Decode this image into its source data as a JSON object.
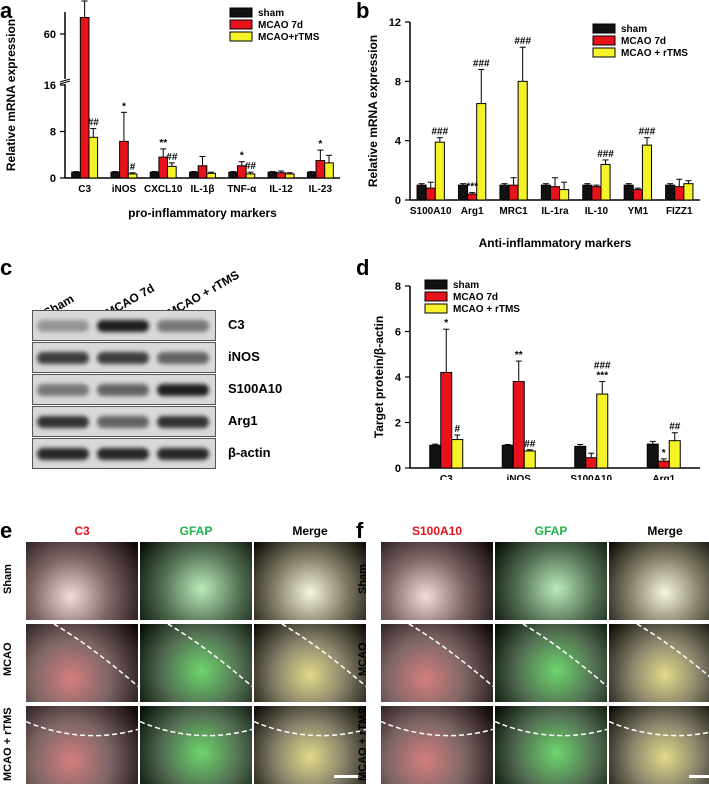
{
  "panel_labels": {
    "a": "a",
    "b": "b",
    "c": "c",
    "d": "d",
    "e": "e",
    "f": "f"
  },
  "colors": {
    "sham": "#111111",
    "mcao": "#e8121b",
    "rtms": "#f5f227"
  },
  "chart_data": [
    {
      "id": "a",
      "type": "bar",
      "ylabel": "Relative mRNA expression",
      "xlabel": "pro-inflammatory markers",
      "categories": [
        "C3",
        "iNOS",
        "CXCL10",
        "IL-1β",
        "TNF-α",
        "IL-12",
        "IL-23"
      ],
      "yaxis_break": {
        "lower": [
          0,
          16
        ],
        "upper": [
          20,
          80
        ],
        "lower_ticks": [
          0,
          8,
          16
        ],
        "upper_ticks": [
          60
        ]
      },
      "legend": [
        "sham",
        "MCAO 7d",
        "MCAO+rTMS"
      ],
      "series": [
        {
          "name": "sham",
          "values": [
            1,
            1,
            1,
            1,
            1,
            1,
            1
          ],
          "err": [
            0.1,
            0.1,
            0.1,
            0.1,
            0.1,
            0.1,
            0.1
          ]
        },
        {
          "name": "MCAO 7d",
          "values": [
            75,
            6.3,
            3.6,
            2.1,
            2.1,
            0.9,
            3.0
          ],
          "err": [
            15,
            5.0,
            1.4,
            1.6,
            0.7,
            0.3,
            1.8
          ]
        },
        {
          "name": "MCAO+rTMS",
          "values": [
            7,
            0.7,
            2.0,
            0.8,
            0.7,
            0.7,
            2.6
          ],
          "err": [
            1.5,
            0.2,
            0.6,
            0.2,
            0.3,
            0.2,
            1.3
          ]
        }
      ],
      "sig": [
        {
          "i": 0,
          "s": 1,
          "t": "**"
        },
        {
          "i": 0,
          "s": 2,
          "t": "##"
        },
        {
          "i": 1,
          "s": 1,
          "t": "*"
        },
        {
          "i": 1,
          "s": 2,
          "t": "#"
        },
        {
          "i": 2,
          "s": 1,
          "t": "**"
        },
        {
          "i": 2,
          "s": 2,
          "t": "##"
        },
        {
          "i": 4,
          "s": 1,
          "t": "*"
        },
        {
          "i": 4,
          "s": 2,
          "t": "##"
        },
        {
          "i": 6,
          "s": 1,
          "t": "*"
        }
      ]
    },
    {
      "id": "b",
      "type": "bar",
      "ylabel": "Relative mRNA expression",
      "xlabel": "Anti-inflammatory markers",
      "categories": [
        "S100A10",
        "Arg1",
        "MRC1",
        "IL-1ra",
        "IL-10",
        "YM1",
        "FIZZ1"
      ],
      "ylim": [
        0,
        12
      ],
      "yticks": [
        0,
        4,
        8,
        12
      ],
      "legend": [
        "sham",
        "MCAO 7d",
        "MCAO + rTMS"
      ],
      "series": [
        {
          "name": "sham",
          "values": [
            1,
            1,
            1,
            1,
            1,
            1,
            1
          ],
          "err": [
            0.1,
            0.1,
            0.1,
            0.1,
            0.1,
            0.1,
            0.1
          ]
        },
        {
          "name": "MCAO 7d",
          "values": [
            0.8,
            0.4,
            1.0,
            0.9,
            0.9,
            0.7,
            0.9
          ],
          "err": [
            0.4,
            0.1,
            0.5,
            0.6,
            0.1,
            0.1,
            0.5
          ]
        },
        {
          "name": "MCAO + rTMS",
          "values": [
            3.9,
            6.5,
            8.0,
            0.7,
            2.4,
            3.7,
            1.1
          ],
          "err": [
            0.3,
            2.3,
            2.3,
            0.5,
            0.3,
            0.5,
            0.2
          ]
        }
      ],
      "sig": [
        {
          "i": 0,
          "s": 2,
          "t": "###"
        },
        {
          "i": 1,
          "s": 1,
          "t": "***"
        },
        {
          "i": 1,
          "s": 2,
          "t": "###"
        },
        {
          "i": 2,
          "s": 2,
          "t": "###"
        },
        {
          "i": 4,
          "s": 2,
          "t": "###"
        },
        {
          "i": 5,
          "s": 2,
          "t": "###"
        }
      ]
    },
    {
      "id": "d",
      "type": "bar",
      "ylabel": "Target protein/β-actin",
      "xlabel": "",
      "categories": [
        "C3",
        "iNOS",
        "S100A10",
        "Arg1"
      ],
      "ylim": [
        0,
        8
      ],
      "yticks": [
        0,
        2,
        4,
        6,
        8
      ],
      "legend": [
        "sham",
        "MCAO 7d",
        "MCAO + rTMS"
      ],
      "series": [
        {
          "name": "sham",
          "values": [
            1.0,
            1.0,
            0.95,
            1.05
          ],
          "err": [
            0.05,
            0.03,
            0.08,
            0.12
          ]
        },
        {
          "name": "MCAO 7d",
          "values": [
            4.2,
            3.8,
            0.45,
            0.3
          ],
          "err": [
            1.9,
            0.9,
            0.2,
            0.1
          ]
        },
        {
          "name": "MCAO + rTMS",
          "values": [
            1.25,
            0.75,
            3.25,
            1.2
          ],
          "err": [
            0.2,
            0.05,
            0.55,
            0.35
          ]
        }
      ],
      "sig": [
        {
          "i": 0,
          "s": 1,
          "t": "*"
        },
        {
          "i": 0,
          "s": 2,
          "t": "#"
        },
        {
          "i": 1,
          "s": 1,
          "t": "**"
        },
        {
          "i": 1,
          "s": 2,
          "t": "##"
        },
        {
          "i": 2,
          "s": 2,
          "t": "###\n***"
        },
        {
          "i": 3,
          "s": 1,
          "t": "*"
        },
        {
          "i": 3,
          "s": 2,
          "t": "##"
        }
      ]
    }
  ],
  "blot": {
    "lanes": [
      "Sham",
      "MCAO 7d",
      "MCAO + rTMS"
    ],
    "rows": [
      {
        "label": "C3",
        "intensity": [
          0.35,
          0.95,
          0.5
        ]
      },
      {
        "label": "iNOS",
        "intensity": [
          0.8,
          0.8,
          0.6
        ]
      },
      {
        "label": "S100A10",
        "intensity": [
          0.5,
          0.6,
          0.95
        ]
      },
      {
        "label": "Arg1",
        "intensity": [
          0.85,
          0.6,
          0.85
        ]
      },
      {
        "label": "β-actin",
        "intensity": [
          0.9,
          0.9,
          0.9
        ]
      }
    ]
  },
  "micro_e": {
    "cols": [
      {
        "title": "C3",
        "color": "#e8121b"
      },
      {
        "title": "GFAP",
        "color": "#22b24c"
      },
      {
        "title": "Merge",
        "color": "#000000"
      }
    ],
    "rows": [
      "Sham",
      "MCAO",
      "MCAO + rTMS"
    ]
  },
  "micro_f": {
    "cols": [
      {
        "title": "S100A10",
        "color": "#e8121b"
      },
      {
        "title": "GFAP",
        "color": "#22b24c"
      },
      {
        "title": "Merge",
        "color": "#000000"
      }
    ],
    "rows": [
      "Sham",
      "MCAO",
      "MCAO + rTMS"
    ]
  }
}
